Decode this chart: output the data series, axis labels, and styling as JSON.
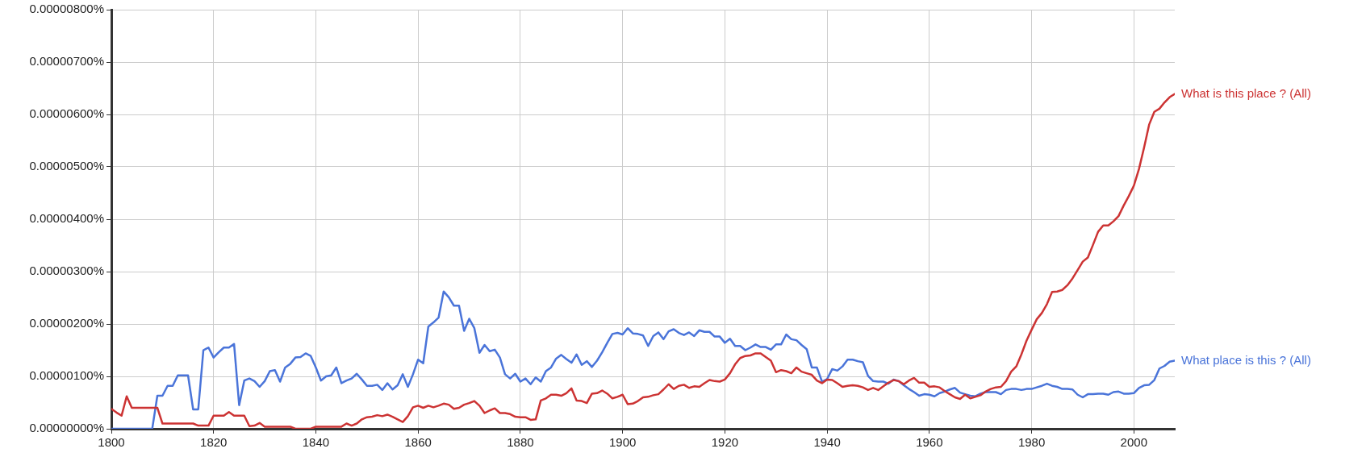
{
  "chart_data": {
    "type": "line",
    "x": [
      1800,
      1801,
      1802,
      1803,
      1804,
      1805,
      1806,
      1807,
      1808,
      1809,
      1810,
      1811,
      1812,
      1813,
      1814,
      1815,
      1816,
      1817,
      1818,
      1819,
      1820,
      1821,
      1822,
      1823,
      1824,
      1825,
      1826,
      1827,
      1828,
      1829,
      1830,
      1831,
      1832,
      1833,
      1834,
      1835,
      1836,
      1837,
      1838,
      1839,
      1840,
      1841,
      1842,
      1843,
      1844,
      1845,
      1846,
      1847,
      1848,
      1849,
      1850,
      1851,
      1852,
      1853,
      1854,
      1855,
      1856,
      1857,
      1858,
      1859,
      1860,
      1861,
      1862,
      1863,
      1864,
      1865,
      1866,
      1867,
      1868,
      1869,
      1870,
      1871,
      1872,
      1873,
      1874,
      1875,
      1876,
      1877,
      1878,
      1879,
      1880,
      1881,
      1882,
      1883,
      1884,
      1885,
      1886,
      1887,
      1888,
      1889,
      1890,
      1891,
      1892,
      1893,
      1894,
      1895,
      1896,
      1897,
      1898,
      1899,
      1900,
      1901,
      1902,
      1903,
      1904,
      1905,
      1906,
      1907,
      1908,
      1909,
      1910,
      1911,
      1912,
      1913,
      1914,
      1915,
      1916,
      1917,
      1918,
      1919,
      1920,
      1921,
      1922,
      1923,
      1924,
      1925,
      1926,
      1927,
      1928,
      1929,
      1930,
      1931,
      1932,
      1933,
      1934,
      1935,
      1936,
      1937,
      1938,
      1939,
      1940,
      1941,
      1942,
      1943,
      1944,
      1945,
      1946,
      1947,
      1948,
      1949,
      1950,
      1951,
      1952,
      1953,
      1954,
      1955,
      1956,
      1957,
      1958,
      1959,
      1960,
      1961,
      1962,
      1963,
      1964,
      1965,
      1966,
      1967,
      1968,
      1969,
      1970,
      1971,
      1972,
      1973,
      1974,
      1975,
      1976,
      1977,
      1978,
      1979,
      1980,
      1981,
      1982,
      1983,
      1984,
      1985,
      1986,
      1987,
      1988,
      1989,
      1990,
      1991,
      1992,
      1993,
      1994,
      1995,
      1996,
      1997,
      1998,
      1999,
      2000,
      2001,
      2002,
      2003,
      2004,
      2005,
      2006,
      2007,
      2008
    ],
    "series": [
      {
        "name": "What is this place ? (All)",
        "color": "#cc3333",
        "values": [
          3.8e-07,
          3.1e-07,
          2.5e-07,
          6.2e-07,
          4e-07,
          4e-07,
          4e-07,
          4e-07,
          4e-07,
          4e-07,
          1e-07,
          1e-07,
          1e-07,
          1e-07,
          1e-07,
          1e-07,
          1e-07,
          6e-08,
          6e-08,
          6e-08,
          2.5e-07,
          2.5e-07,
          2.5e-07,
          3.2e-07,
          2.5e-07,
          2.5e-07,
          2.5e-07,
          5e-08,
          6e-08,
          1.1e-07,
          4e-08,
          4e-08,
          4e-08,
          4e-08,
          4e-08,
          4e-08,
          0,
          0,
          0,
          0,
          4e-08,
          4e-08,
          4e-08,
          4e-08,
          4e-08,
          4e-08,
          1e-07,
          6e-08,
          1e-07,
          1.8e-07,
          2.2e-07,
          2.3e-07,
          2.6e-07,
          2.4e-07,
          2.7e-07,
          2.3e-07,
          1.8e-07,
          1.3e-07,
          2.4e-07,
          4.1e-07,
          4.4e-07,
          4e-07,
          4.4e-07,
          4.1e-07,
          4.4e-07,
          4.8e-07,
          4.6e-07,
          3.8e-07,
          4e-07,
          4.6e-07,
          4.9e-07,
          5.3e-07,
          4.4e-07,
          3e-07,
          3.5e-07,
          3.9e-07,
          3e-07,
          3e-07,
          2.8e-07,
          2.3e-07,
          2.2e-07,
          2.2e-07,
          1.7e-07,
          1.8e-07,
          5.4e-07,
          5.8e-07,
          6.5e-07,
          6.5e-07,
          6.3e-07,
          6.8e-07,
          7.7e-07,
          5.4e-07,
          5.3e-07,
          4.9e-07,
          6.7e-07,
          6.8e-07,
          7.3e-07,
          6.7e-07,
          5.8e-07,
          6.1e-07,
          6.5e-07,
          4.7e-07,
          4.8e-07,
          5.3e-07,
          6e-07,
          6.1e-07,
          6.4e-07,
          6.6e-07,
          7.5e-07,
          8.5e-07,
          7.6e-07,
          8.2e-07,
          8.4e-07,
          7.8e-07,
          8.1e-07,
          8e-07,
          8.7e-07,
          9.3e-07,
          9.1e-07,
          9e-07,
          9.4e-07,
          1.06e-06,
          1.23e-06,
          1.35e-06,
          1.39e-06,
          1.4e-06,
          1.44e-06,
          1.44e-06,
          1.37e-06,
          1.3e-06,
          1.08e-06,
          1.12e-06,
          1.1e-06,
          1.06e-06,
          1.17e-06,
          1.09e-06,
          1.06e-06,
          1.03e-06,
          9.2e-07,
          8.7e-07,
          9.4e-07,
          9.3e-07,
          8.7e-07,
          8e-07,
          8.2e-07,
          8.3e-07,
          8.2e-07,
          7.9e-07,
          7.4e-07,
          7.8e-07,
          7.4e-07,
          8.1e-07,
          8.8e-07,
          9.3e-07,
          9.1e-07,
          8.5e-07,
          9.2e-07,
          9.7e-07,
          8.8e-07,
          8.8e-07,
          8e-07,
          8.1e-07,
          7.9e-07,
          7.2e-07,
          6.6e-07,
          6e-07,
          5.7e-07,
          6.5e-07,
          5.8e-07,
          6.1e-07,
          6.4e-07,
          7.1e-07,
          7.6e-07,
          7.9e-07,
          8e-07,
          9.1e-07,
          1.09e-06,
          1.19e-06,
          1.42e-06,
          1.68e-06,
          1.89e-06,
          2.09e-06,
          2.21e-06,
          2.38e-06,
          2.61e-06,
          2.62e-06,
          2.65e-06,
          2.74e-06,
          2.87e-06,
          3.03e-06,
          3.19e-06,
          3.27e-06,
          3.51e-06,
          3.76e-06,
          3.88e-06,
          3.88e-06,
          3.96e-06,
          4.06e-06,
          4.26e-06,
          4.44e-06,
          4.64e-06,
          4.96e-06,
          5.37e-06,
          5.81e-06,
          6.05e-06,
          6.11e-06,
          6.23e-06,
          6.33e-06,
          6.39e-06
        ]
      },
      {
        "name": "What place is this ? (All)",
        "color": "#4a74d9",
        "values": [
          0,
          0,
          0,
          0,
          0,
          0,
          0,
          0,
          0,
          6.3e-07,
          6.3e-07,
          8.2e-07,
          8.2e-07,
          1.02e-06,
          1.02e-06,
          1.02e-06,
          3.7e-07,
          3.7e-07,
          1.5e-06,
          1.55e-06,
          1.36e-06,
          1.46e-06,
          1.55e-06,
          1.55e-06,
          1.62e-06,
          4.5e-07,
          9.2e-07,
          9.6e-07,
          9.1e-07,
          8e-07,
          9.1e-07,
          1.1e-06,
          1.12e-06,
          9e-07,
          1.17e-06,
          1.24e-06,
          1.36e-06,
          1.37e-06,
          1.44e-06,
          1.39e-06,
          1.17e-06,
          9.2e-07,
          1e-06,
          1.02e-06,
          1.17e-06,
          8.7e-07,
          9.2e-07,
          9.6e-07,
          1.05e-06,
          9.4e-07,
          8.2e-07,
          8.2e-07,
          8.4e-07,
          7.4e-07,
          8.7e-07,
          7.5e-07,
          8.3e-07,
          1.04e-06,
          8e-07,
          1.04e-06,
          1.32e-06,
          1.25e-06,
          1.95e-06,
          2.03e-06,
          2.12e-06,
          2.62e-06,
          2.51e-06,
          2.35e-06,
          2.35e-06,
          1.87e-06,
          2.1e-06,
          1.92e-06,
          1.45e-06,
          1.6e-06,
          1.48e-06,
          1.51e-06,
          1.36e-06,
          1.04e-06,
          9.6e-07,
          1.05e-06,
          9e-07,
          9.6e-07,
          8.5e-07,
          9.8e-07,
          9e-07,
          1.1e-06,
          1.17e-06,
          1.34e-06,
          1.41e-06,
          1.33e-06,
          1.26e-06,
          1.42e-06,
          1.22e-06,
          1.29e-06,
          1.18e-06,
          1.3e-06,
          1.46e-06,
          1.64e-06,
          1.81e-06,
          1.83e-06,
          1.8e-06,
          1.92e-06,
          1.82e-06,
          1.81e-06,
          1.78e-06,
          1.58e-06,
          1.77e-06,
          1.84e-06,
          1.71e-06,
          1.86e-06,
          1.9e-06,
          1.83e-06,
          1.79e-06,
          1.84e-06,
          1.77e-06,
          1.88e-06,
          1.85e-06,
          1.85e-06,
          1.76e-06,
          1.76e-06,
          1.64e-06,
          1.72e-06,
          1.58e-06,
          1.58e-06,
          1.5e-06,
          1.55e-06,
          1.61e-06,
          1.56e-06,
          1.56e-06,
          1.51e-06,
          1.61e-06,
          1.61e-06,
          1.8e-06,
          1.71e-06,
          1.69e-06,
          1.6e-06,
          1.52e-06,
          1.17e-06,
          1.17e-06,
          9e-07,
          9.5e-07,
          1.14e-06,
          1.11e-06,
          1.19e-06,
          1.32e-06,
          1.32e-06,
          1.29e-06,
          1.27e-06,
          1.01e-06,
          9.1e-07,
          9e-07,
          9e-07,
          8.6e-07,
          9.4e-07,
          9.1e-07,
          8.3e-07,
          7.6e-07,
          7e-07,
          6.3e-07,
          6.6e-07,
          6.5e-07,
          6.2e-07,
          6.8e-07,
          7.1e-07,
          7.5e-07,
          7.8e-07,
          6.9e-07,
          6.6e-07,
          6.3e-07,
          6.2e-07,
          6.7e-07,
          7e-07,
          7e-07,
          7e-07,
          6.6e-07,
          7.4e-07,
          7.6e-07,
          7.6e-07,
          7.4e-07,
          7.6e-07,
          7.6e-07,
          7.9e-07,
          8.2e-07,
          8.6e-07,
          8.2e-07,
          8e-07,
          7.6e-07,
          7.6e-07,
          7.5e-07,
          6.5e-07,
          6e-07,
          6.6e-07,
          6.6e-07,
          6.7e-07,
          6.7e-07,
          6.5e-07,
          7e-07,
          7.1e-07,
          6.7e-07,
          6.7e-07,
          6.8e-07,
          7.8e-07,
          8.3e-07,
          8.4e-07,
          9.3e-07,
          1.15e-06,
          1.2e-06,
          1.28e-06,
          1.3e-06
        ]
      }
    ],
    "xlim": [
      1800,
      2008
    ],
    "xticks": [
      1800,
      1820,
      1840,
      1860,
      1880,
      1900,
      1920,
      1940,
      1960,
      1980,
      2000
    ],
    "ylim": [
      0,
      8e-06
    ],
    "yticks": [
      {
        "value": 0,
        "label": "0.00000000%"
      },
      {
        "value": 1e-06,
        "label": "0.00000100%"
      },
      {
        "value": 2e-06,
        "label": "0.00000200%"
      },
      {
        "value": 3e-06,
        "label": "0.00000300%"
      },
      {
        "value": 4e-06,
        "label": "0.00000400%"
      },
      {
        "value": 5e-06,
        "label": "0.00000500%"
      },
      {
        "value": 6e-06,
        "label": "0.00000600%"
      },
      {
        "value": 7e-06,
        "label": "0.00000700%"
      },
      {
        "value": 8e-06,
        "label": "0.00000800%"
      }
    ],
    "grid": true,
    "legend": false,
    "marker": "none",
    "line_style": "solid"
  }
}
